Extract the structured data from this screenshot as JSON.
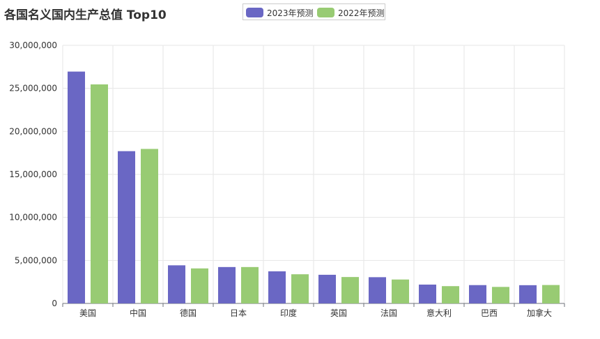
{
  "colors": {
    "series_2023": "#6a67c4",
    "series_2022": "#98cb73",
    "grid": "#e6e6e6",
    "axis": "#6e7079",
    "text": "#333333"
  },
  "chart_data": {
    "type": "bar",
    "title": "各国名义国内生产总值 Top10",
    "xlabel": "",
    "ylabel": "",
    "ylim": [
      0,
      30000000
    ],
    "yticks": [
      "0",
      "5,000,000",
      "10,000,000",
      "15,000,000",
      "20,000,000",
      "25,000,000",
      "30,000,000"
    ],
    "grid": true,
    "legend_position": "top-center",
    "categories": [
      "美国",
      "中国",
      "德国",
      "日本",
      "印度",
      "英国",
      "法国",
      "意大利",
      "巴西",
      "加拿大"
    ],
    "series": [
      {
        "name": "2023年预测",
        "values": [
          26950000,
          17700000,
          4430000,
          4230000,
          3730000,
          3330000,
          3050000,
          2190000,
          2130000,
          2120000
        ]
      },
      {
        "name": "2022年预测",
        "values": [
          25460000,
          17960000,
          4070000,
          4230000,
          3390000,
          3070000,
          2780000,
          2010000,
          1920000,
          2140000
        ]
      }
    ]
  }
}
